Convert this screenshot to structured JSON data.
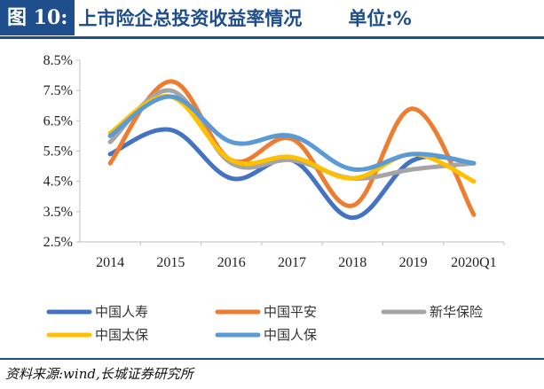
{
  "header": {
    "figure_label": "图 10:",
    "title": "上市险企总投资收益率情况",
    "unit": "单位:%"
  },
  "footer": {
    "source": "资料来源:wind,长城证券研究所"
  },
  "colors": {
    "brand": "#1f4e8c"
  },
  "chart_data": {
    "type": "line",
    "smooth": true,
    "categories": [
      "2014",
      "2015",
      "2016",
      "2017",
      "2018",
      "2019",
      "2020Q1"
    ],
    "yticks": [
      "2.5%",
      "3.5%",
      "4.5%",
      "5.5%",
      "6.5%",
      "7.5%",
      "8.5%"
    ],
    "ylim": [
      2.5,
      8.5
    ],
    "grid": false,
    "legend_position": "bottom",
    "series": [
      {
        "name": "中国人寿",
        "color": "#4472c4",
        "values": [
          5.4,
          6.2,
          4.6,
          5.2,
          3.3,
          5.2,
          5.1
        ]
      },
      {
        "name": "中国平安",
        "color": "#ed7d31",
        "values": [
          5.1,
          7.8,
          5.2,
          5.9,
          3.7,
          6.9,
          3.4
        ]
      },
      {
        "name": "新华保险",
        "color": "#a5a5a5",
        "values": [
          5.8,
          7.5,
          5.1,
          5.2,
          4.6,
          4.9,
          5.1
        ]
      },
      {
        "name": "中国太保",
        "color": "#ffc000",
        "values": [
          6.1,
          7.3,
          5.2,
          5.3,
          4.6,
          5.4,
          4.5
        ]
      },
      {
        "name": "中国人保",
        "color": "#5b9bd5",
        "values": [
          6.0,
          7.3,
          5.8,
          6.0,
          4.9,
          5.4,
          5.1
        ]
      }
    ]
  }
}
